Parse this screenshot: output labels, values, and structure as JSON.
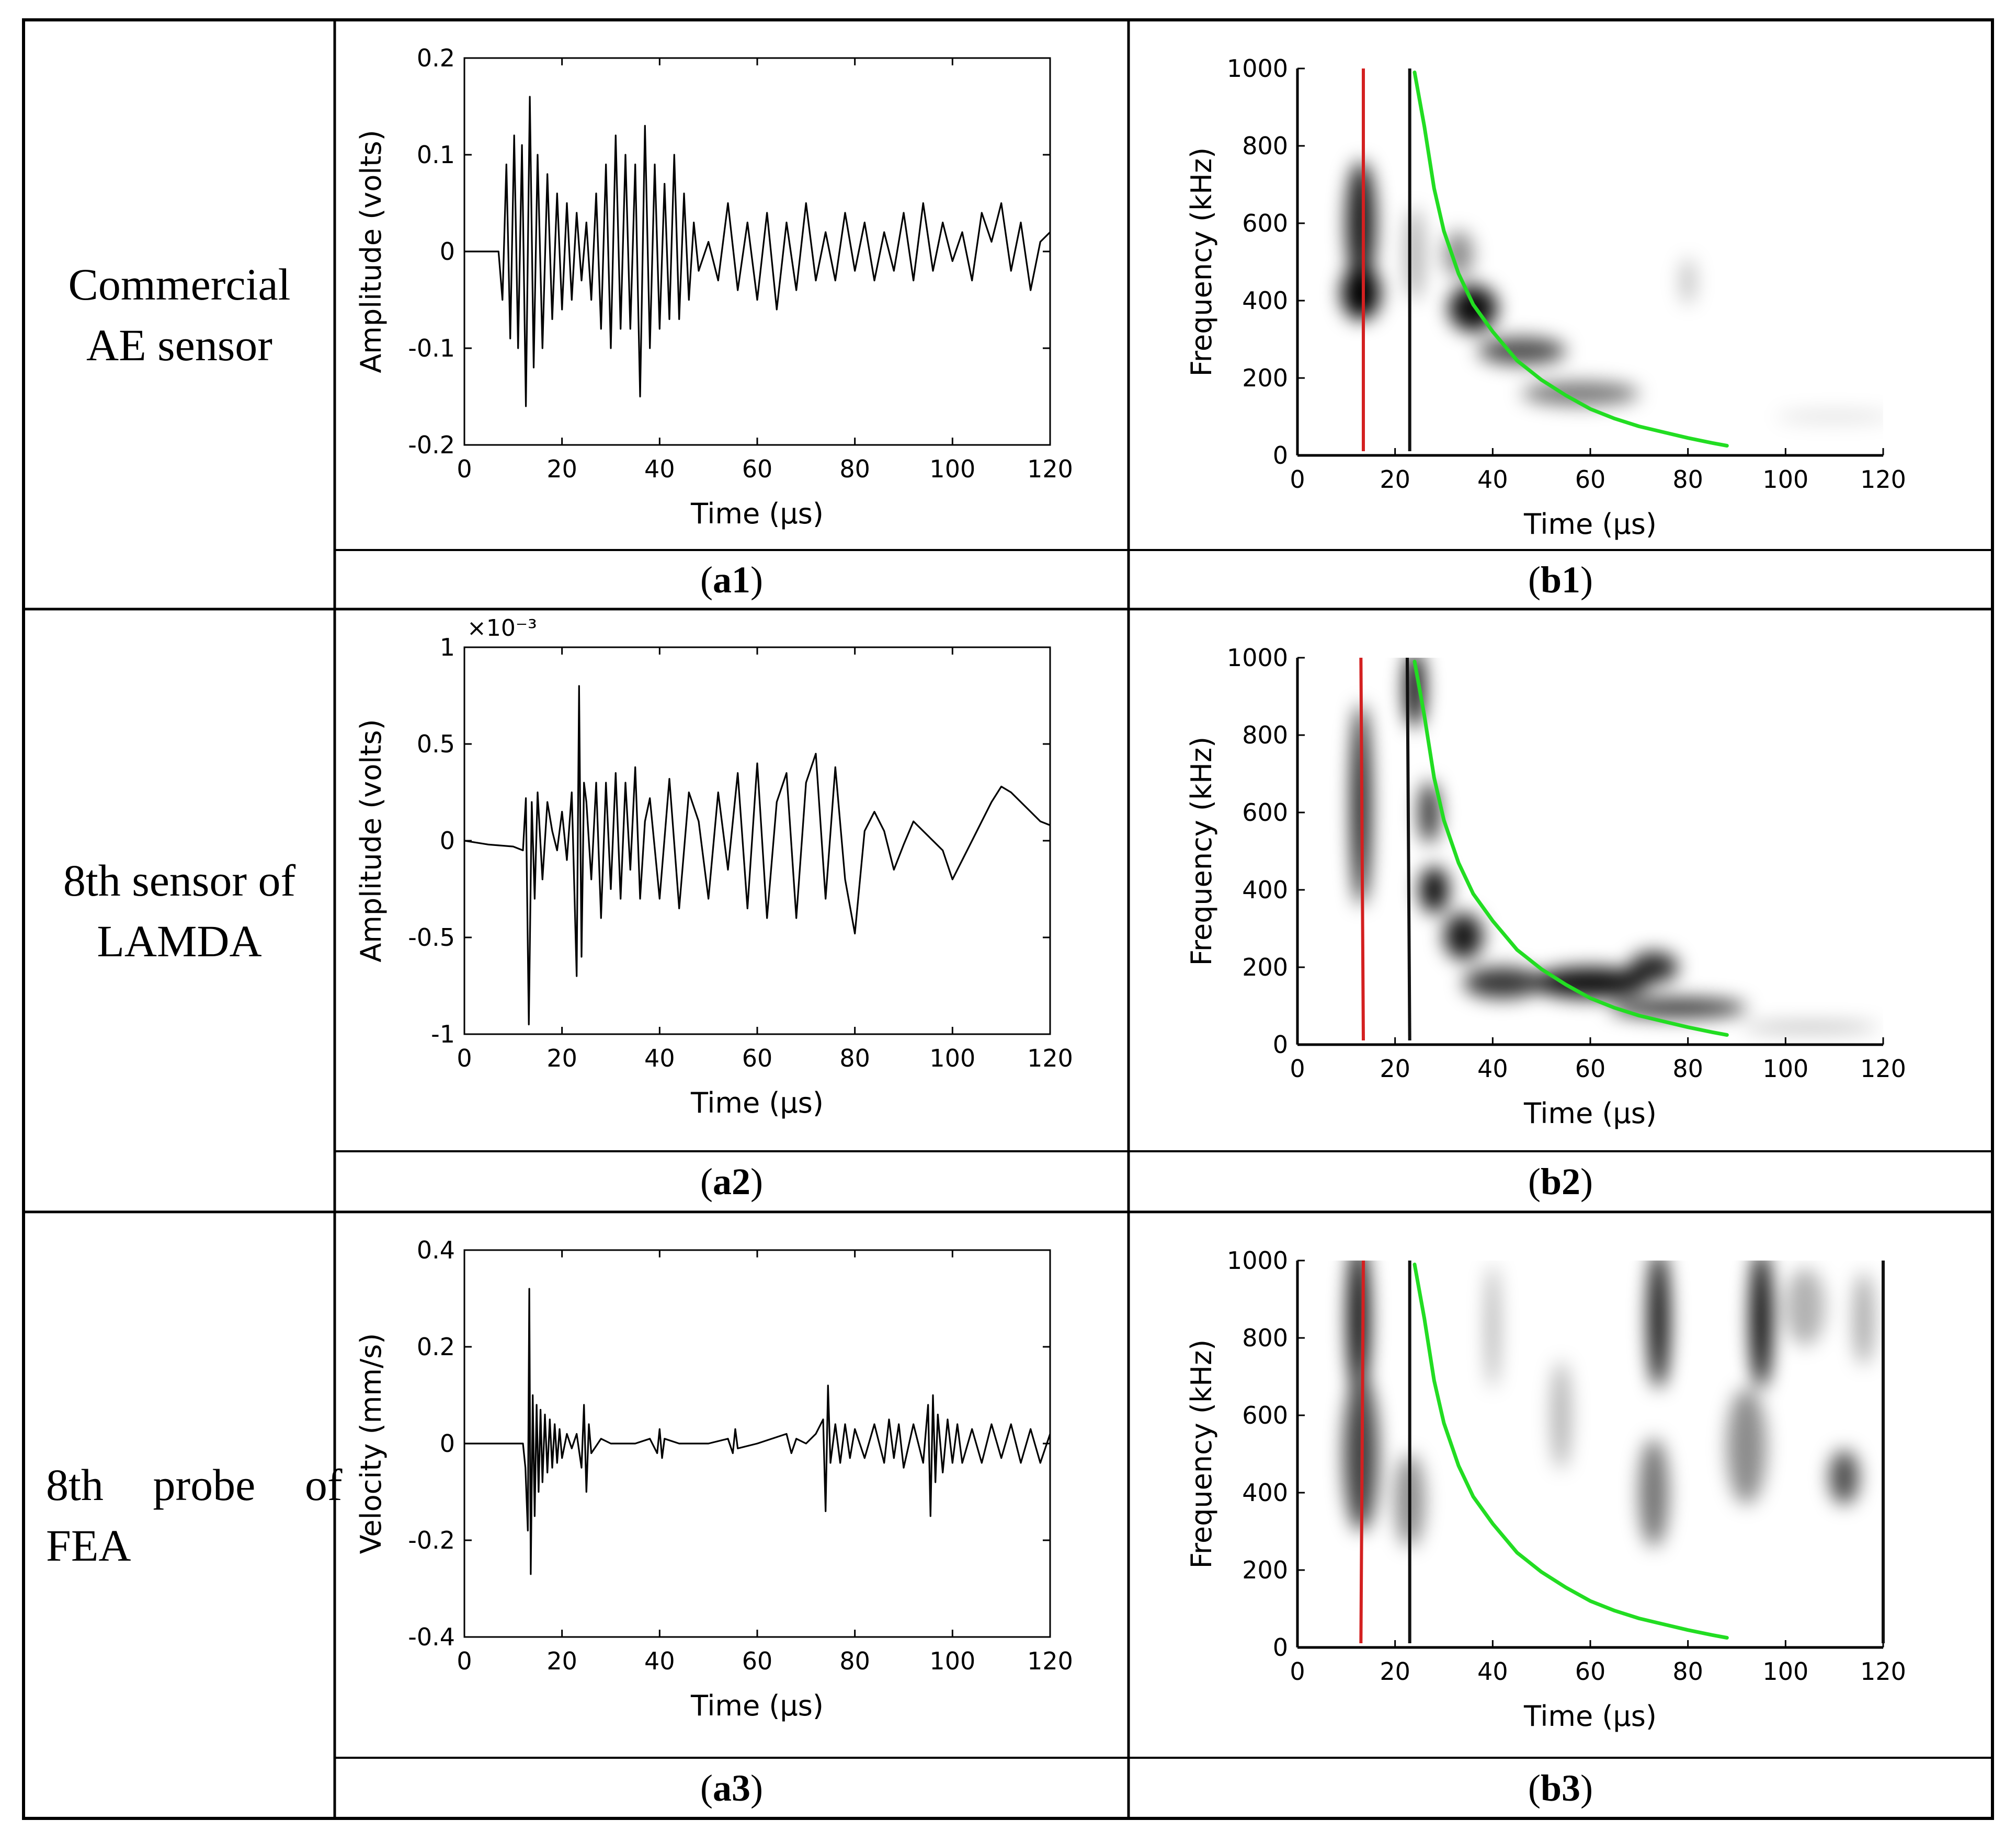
{
  "figure": {
    "rows": [
      {
        "label_lines": [
          "Commercial",
          "AE sensor"
        ],
        "align": "center"
      },
      {
        "label_lines": [
          "8th sensor of",
          "LAMDA"
        ],
        "align": "center"
      },
      {
        "label_lines": [
          "8th  probe  of",
          "FEA"
        ],
        "align": "left"
      }
    ],
    "captions": [
      {
        "open": "(",
        "letter": "a1",
        "close": ")"
      },
      {
        "open": "(",
        "letter": "b1",
        "close": ")"
      },
      {
        "open": "(",
        "letter": "a2",
        "close": ")"
      },
      {
        "open": "(",
        "letter": "b2",
        "close": ")"
      },
      {
        "open": "(",
        "letter": "a3",
        "close": ")"
      },
      {
        "open": "(",
        "letter": "b3",
        "close": ")"
      }
    ]
  },
  "chart_data": [
    {
      "id": "a1",
      "type": "line",
      "title": "",
      "xlabel": "Time (μs)",
      "ylabel": "Amplitude (volts)",
      "xlim": [
        0,
        120
      ],
      "ylim": [
        -0.2,
        0.2
      ],
      "xticks": [
        0,
        20,
        40,
        60,
        80,
        100,
        120
      ],
      "yticks": [
        -0.2,
        -0.1,
        0,
        0.1,
        0.2
      ],
      "ytick_labels": [
        "-0.2",
        "-0.1",
        "0",
        "0.1",
        "0.2"
      ],
      "multiplier_label": "",
      "series": [
        {
          "name": "Commercial AE sensor waveform",
          "x": [
            0,
            7,
            7.8,
            8.6,
            9.4,
            10.2,
            11,
            11.8,
            12.6,
            13.4,
            14.2,
            15,
            16,
            17,
            18,
            19,
            20,
            21,
            22,
            23,
            24,
            25,
            26,
            27,
            28,
            29,
            30,
            31,
            32,
            33,
            34,
            35,
            36,
            37,
            38,
            39,
            40,
            41,
            42,
            43,
            44,
            45,
            46,
            47,
            48,
            50,
            52,
            54,
            56,
            58,
            60,
            62,
            64,
            66,
            68,
            70,
            72,
            74,
            76,
            78,
            80,
            82,
            84,
            86,
            88,
            90,
            92,
            94,
            96,
            98,
            100,
            102,
            104,
            106,
            108,
            110,
            112,
            114,
            116,
            118,
            120
          ],
          "y": [
            0,
            0,
            -0.05,
            0.09,
            -0.09,
            0.12,
            -0.1,
            0.11,
            -0.16,
            0.16,
            -0.12,
            0.1,
            -0.1,
            0.08,
            -0.07,
            0.06,
            -0.06,
            0.05,
            -0.05,
            0.04,
            -0.03,
            0.03,
            -0.05,
            0.06,
            -0.08,
            0.09,
            -0.1,
            0.12,
            -0.08,
            0.1,
            -0.08,
            0.09,
            -0.15,
            0.13,
            -0.1,
            0.09,
            -0.08,
            0.07,
            -0.07,
            0.1,
            -0.07,
            0.06,
            -0.05,
            0.03,
            -0.02,
            0.01,
            -0.03,
            0.05,
            -0.04,
            0.03,
            -0.05,
            0.04,
            -0.06,
            0.03,
            -0.04,
            0.05,
            -0.03,
            0.02,
            -0.03,
            0.04,
            -0.02,
            0.03,
            -0.03,
            0.02,
            -0.02,
            0.04,
            -0.03,
            0.05,
            -0.02,
            0.03,
            -0.01,
            0.02,
            -0.03,
            0.04,
            0.01,
            0.05,
            -0.02,
            0.03,
            -0.04,
            0.01,
            0.02
          ]
        }
      ]
    },
    {
      "id": "b1",
      "type": "heatmap",
      "title": "",
      "xlabel": "Time (μs)",
      "ylabel": "Frequency (kHz)",
      "xlim": [
        0,
        120
      ],
      "ylim": [
        0,
        1000
      ],
      "xticks": [
        0,
        20,
        40,
        60,
        80,
        100,
        120
      ],
      "yticks": [
        0,
        200,
        400,
        600,
        800,
        1000
      ],
      "blobs": [
        {
          "t": 13,
          "f": 600,
          "dt": 3,
          "df": 160,
          "a": 0.9
        },
        {
          "t": 13,
          "f": 420,
          "dt": 4,
          "df": 70,
          "a": 1.0
        },
        {
          "t": 24,
          "f": 520,
          "dt": 2,
          "df": 120,
          "a": 0.3
        },
        {
          "t": 36,
          "f": 380,
          "dt": 5,
          "df": 60,
          "a": 0.95
        },
        {
          "t": 33,
          "f": 520,
          "dt": 3,
          "df": 60,
          "a": 0.45
        },
        {
          "t": 46,
          "f": 270,
          "dt": 9,
          "df": 35,
          "a": 0.7
        },
        {
          "t": 58,
          "f": 160,
          "dt": 12,
          "df": 30,
          "a": 0.55
        },
        {
          "t": 80,
          "f": 450,
          "dt": 1.5,
          "df": 60,
          "a": 0.25
        },
        {
          "t": 110,
          "f": 100,
          "dt": 12,
          "df": 15,
          "a": 0.12
        }
      ],
      "markers": [
        {
          "name": "red line",
          "color": "#d42020",
          "x_bottom": 13.5,
          "x_top": 13.5
        },
        {
          "name": "black line",
          "color": "#111111",
          "x_bottom": 23,
          "x_top": 23
        }
      ],
      "curve": {
        "name": "dispersion curve",
        "color": "#22dd22",
        "x": [
          24,
          26,
          28,
          30,
          33,
          36,
          40,
          45,
          50,
          55,
          60,
          65,
          70,
          75,
          80,
          85,
          88
        ],
        "y": [
          990,
          850,
          690,
          580,
          470,
          390,
          320,
          245,
          195,
          155,
          120,
          95,
          75,
          60,
          45,
          32,
          25
        ]
      }
    },
    {
      "id": "a2",
      "type": "line",
      "title": "",
      "xlabel": "Time (μs)",
      "ylabel": "Amplitude (volts)",
      "xlim": [
        0,
        120
      ],
      "ylim": [
        -1,
        1
      ],
      "xticks": [
        0,
        20,
        40,
        60,
        80,
        100,
        120
      ],
      "yticks": [
        -1,
        -0.5,
        0,
        0.5,
        1
      ],
      "ytick_labels": [
        "-1",
        "-0.5",
        "0",
        "0.5",
        "1"
      ],
      "multiplier_label": "×10⁻³",
      "series": [
        {
          "name": "LAMDA 8th sensor waveform",
          "x": [
            0,
            5,
            10,
            12,
            12.6,
            13.2,
            13.8,
            14.4,
            15,
            16,
            17,
            18,
            19,
            20,
            21,
            22,
            23,
            23.5,
            24,
            24.5,
            25,
            26,
            27,
            28,
            29,
            30,
            31,
            32,
            33,
            34,
            35,
            36,
            37,
            38,
            40,
            42,
            44,
            46,
            48,
            50,
            52,
            54,
            56,
            58,
            60,
            62,
            64,
            66,
            68,
            70,
            72,
            74,
            76,
            78,
            80,
            82,
            84,
            86,
            88,
            90,
            92,
            94,
            96,
            98,
            100,
            102,
            104,
            106,
            108,
            110,
            112,
            114,
            116,
            118,
            120
          ],
          "y": [
            0,
            -0.02,
            -0.03,
            -0.05,
            0.22,
            -0.95,
            0.2,
            -0.3,
            0.25,
            -0.2,
            0.2,
            0.05,
            -0.05,
            0.15,
            -0.1,
            0.25,
            -0.7,
            0.8,
            -0.6,
            0.3,
            0.2,
            -0.2,
            0.3,
            -0.4,
            0.3,
            -0.25,
            0.35,
            -0.3,
            0.3,
            -0.15,
            0.38,
            -0.3,
            0.1,
            0.22,
            -0.3,
            0.32,
            -0.35,
            0.25,
            0.1,
            -0.3,
            0.25,
            -0.15,
            0.35,
            -0.35,
            0.4,
            -0.4,
            0.2,
            0.35,
            -0.4,
            0.3,
            0.45,
            -0.3,
            0.38,
            -0.2,
            -0.48,
            0.05,
            0.15,
            0.05,
            -0.15,
            -0.02,
            0.1,
            0.05,
            0.0,
            -0.05,
            -0.2,
            -0.1,
            0.0,
            0.1,
            0.2,
            0.28,
            0.25,
            0.2,
            0.15,
            0.1,
            0.08
          ]
        }
      ]
    },
    {
      "id": "b2",
      "type": "heatmap",
      "title": "",
      "xlabel": "Time (μs)",
      "ylabel": "Frequency (kHz)",
      "xlim": [
        0,
        120
      ],
      "ylim": [
        0,
        1000
      ],
      "xticks": [
        0,
        20,
        40,
        60,
        80,
        100,
        120
      ],
      "yticks": [
        0,
        200,
        400,
        600,
        800,
        1000
      ],
      "blobs": [
        {
          "t": 13,
          "f": 620,
          "dt": 1.8,
          "df": 260,
          "a": 1.0
        },
        {
          "t": 24,
          "f": 920,
          "dt": 2,
          "df": 100,
          "a": 1.0
        },
        {
          "t": 27,
          "f": 600,
          "dt": 2,
          "df": 80,
          "a": 0.85
        },
        {
          "t": 28,
          "f": 400,
          "dt": 3,
          "df": 60,
          "a": 0.95
        },
        {
          "t": 34,
          "f": 280,
          "dt": 4,
          "df": 60,
          "a": 0.9
        },
        {
          "t": 42,
          "f": 160,
          "dt": 8,
          "df": 40,
          "a": 0.8
        },
        {
          "t": 60,
          "f": 160,
          "dt": 12,
          "df": 40,
          "a": 0.95
        },
        {
          "t": 73,
          "f": 200,
          "dt": 5,
          "df": 40,
          "a": 0.85
        },
        {
          "t": 78,
          "f": 95,
          "dt": 14,
          "df": 25,
          "a": 0.8
        },
        {
          "t": 105,
          "f": 45,
          "dt": 14,
          "df": 12,
          "a": 0.3
        }
      ],
      "markers": [
        {
          "name": "red line",
          "color": "#d42020",
          "x_bottom": 13.5,
          "x_top": 13
        },
        {
          "name": "black line",
          "color": "#111111",
          "x_bottom": 23,
          "x_top": 22.5
        }
      ],
      "curve": {
        "name": "dispersion curve",
        "color": "#22dd22",
        "x": [
          24,
          26,
          28,
          30,
          33,
          36,
          40,
          45,
          50,
          55,
          60,
          65,
          70,
          75,
          80,
          85,
          88
        ],
        "y": [
          990,
          850,
          690,
          580,
          470,
          390,
          320,
          245,
          195,
          155,
          120,
          95,
          75,
          60,
          45,
          32,
          25
        ]
      }
    },
    {
      "id": "a3",
      "type": "line",
      "title": "",
      "xlabel": "Time (μs)",
      "ylabel": "Velocity (mm/s)",
      "xlim": [
        0,
        120
      ],
      "ylim": [
        -0.4,
        0.4
      ],
      "xticks": [
        0,
        20,
        40,
        60,
        80,
        100,
        120
      ],
      "yticks": [
        -0.4,
        -0.2,
        0,
        0.2,
        0.4
      ],
      "ytick_labels": [
        "-0.4",
        "-0.2",
        "0",
        "0.2",
        "0.4"
      ],
      "multiplier_label": "",
      "series": [
        {
          "name": "FEA 8th probe velocity",
          "x": [
            0,
            12,
            12.5,
            13,
            13.3,
            13.6,
            14,
            14.4,
            14.8,
            15.2,
            15.6,
            16,
            16.5,
            17,
            17.5,
            18,
            18.5,
            19,
            19.5,
            20,
            21,
            22,
            23,
            24,
            24.5,
            25,
            25.5,
            26,
            28,
            30,
            35,
            38,
            39.5,
            40,
            40.5,
            41,
            44,
            50,
            54,
            55,
            55.5,
            56,
            60,
            66,
            67,
            68,
            70,
            72,
            73.5,
            74,
            74.5,
            75,
            76,
            77,
            78,
            79,
            80,
            82,
            84,
            86,
            87,
            88,
            89,
            90,
            92,
            94,
            95,
            95.5,
            96,
            96.5,
            97,
            98,
            99,
            100,
            101,
            102,
            104,
            106,
            108,
            110,
            112,
            114,
            116,
            118,
            120
          ],
          "y": [
            0,
            0,
            -0.05,
            -0.18,
            0.32,
            -0.27,
            0.1,
            -0.15,
            0.08,
            -0.1,
            0.07,
            -0.08,
            0.06,
            -0.06,
            0.05,
            -0.05,
            0.04,
            -0.04,
            0.03,
            -0.03,
            0.02,
            -0.01,
            0.02,
            -0.05,
            0.08,
            -0.1,
            0.04,
            -0.02,
            0.01,
            0,
            0,
            0.01,
            -0.02,
            0.03,
            -0.03,
            0.01,
            0,
            0,
            0.01,
            -0.02,
            0.03,
            -0.01,
            0,
            0.02,
            -0.02,
            0.01,
            0,
            0.02,
            0.05,
            -0.14,
            0.12,
            -0.04,
            0.04,
            -0.04,
            0.04,
            -0.03,
            0.03,
            -0.03,
            0.04,
            -0.04,
            0.05,
            -0.03,
            0.04,
            -0.05,
            0.04,
            -0.04,
            0.08,
            -0.15,
            0.1,
            -0.08,
            0.06,
            -0.06,
            0.05,
            -0.04,
            0.04,
            -0.04,
            0.03,
            -0.04,
            0.04,
            -0.03,
            0.04,
            -0.04,
            0.03,
            -0.04,
            0.02
          ]
        }
      ]
    },
    {
      "id": "b3",
      "type": "heatmap",
      "title": "",
      "xlabel": "Time (μs)",
      "ylabel": "Frequency (kHz)",
      "xlim": [
        0,
        120
      ],
      "ylim": [
        0,
        1000
      ],
      "xticks": [
        0,
        20,
        40,
        60,
        80,
        100,
        120
      ],
      "yticks": [
        0,
        200,
        400,
        600,
        800,
        1000
      ],
      "blobs": [
        {
          "t": 12.5,
          "f": 850,
          "dt": 2.2,
          "df": 200,
          "a": 1.0
        },
        {
          "t": 13,
          "f": 500,
          "dt": 3.5,
          "df": 200,
          "a": 0.75
        },
        {
          "t": 23,
          "f": 380,
          "dt": 3,
          "df": 120,
          "a": 0.45
        },
        {
          "t": 40,
          "f": 830,
          "dt": 1.2,
          "df": 160,
          "a": 0.35
        },
        {
          "t": 54,
          "f": 600,
          "dt": 2,
          "df": 140,
          "a": 0.3
        },
        {
          "t": 74,
          "f": 850,
          "dt": 2.2,
          "df": 180,
          "a": 0.95
        },
        {
          "t": 73,
          "f": 400,
          "dt": 3,
          "df": 140,
          "a": 0.55
        },
        {
          "t": 95,
          "f": 850,
          "dt": 2.2,
          "df": 180,
          "a": 1.0
        },
        {
          "t": 92,
          "f": 520,
          "dt": 4,
          "df": 150,
          "a": 0.45
        },
        {
          "t": 104,
          "f": 880,
          "dt": 4,
          "df": 100,
          "a": 0.3
        },
        {
          "t": 112,
          "f": 440,
          "dt": 3,
          "df": 70,
          "a": 0.7
        },
        {
          "t": 116,
          "f": 850,
          "dt": 2,
          "df": 120,
          "a": 0.35
        }
      ],
      "markers": [
        {
          "name": "red line",
          "color": "#d42020",
          "x_bottom": 13,
          "x_top": 13.5
        },
        {
          "name": "black line",
          "color": "#111111",
          "x_bottom": 23,
          "x_top": 23
        },
        {
          "name": "right edge line",
          "color": "#111111",
          "x_bottom": 120,
          "x_top": 120
        }
      ],
      "curve": {
        "name": "dispersion curve",
        "color": "#22dd22",
        "x": [
          24,
          26,
          28,
          30,
          33,
          36,
          40,
          45,
          50,
          55,
          60,
          65,
          70,
          75,
          80,
          85,
          88
        ],
        "y": [
          990,
          850,
          690,
          580,
          470,
          390,
          320,
          245,
          195,
          155,
          120,
          95,
          75,
          60,
          45,
          32,
          25
        ]
      }
    }
  ]
}
